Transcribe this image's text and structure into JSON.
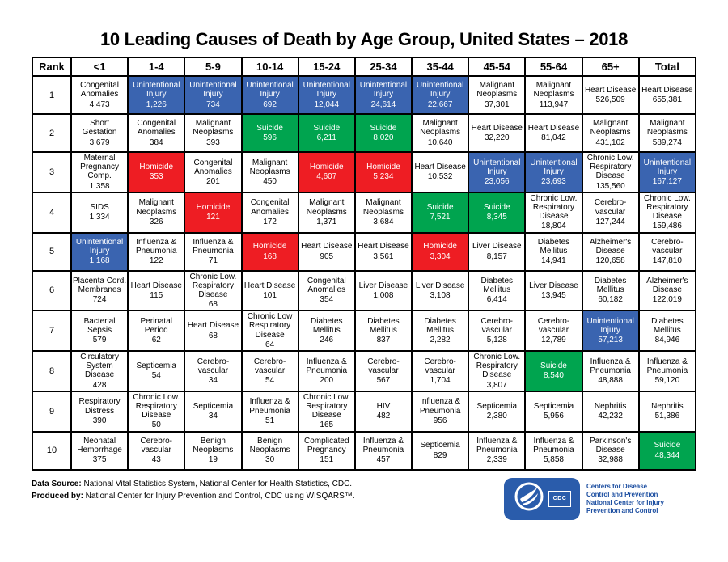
{
  "page": {
    "title": "10 Leading Causes of Death by Age Group, United States – 2018"
  },
  "colors": {
    "blue": "#3A64B0",
    "green": "#00A44F",
    "red": "#EE1D23",
    "logo_badge_blue": "#2A5CAB",
    "logo_text_blue": "#1D4FA1",
    "border_black": "#000000"
  },
  "chart_data": {
    "type": "table",
    "title": "10 Leading Causes of Death by Age Group, United States – 2018",
    "columns": [
      "Rank",
      "<1",
      "1-4",
      "5-9",
      "10-14",
      "15-24",
      "25-34",
      "35-44",
      "45-54",
      "55-64",
      "65+",
      "Total"
    ],
    "color_meaning": {
      "blue": "Unintentional Injury",
      "green": "Suicide",
      "red": "Homicide",
      "white": "other causes"
    },
    "rows": [
      {
        "rank": "1",
        "cells": [
          {
            "cause": "Congenital Anomalies",
            "value": "4,473",
            "color": "white"
          },
          {
            "cause": "Unintentional Injury",
            "value": "1,226",
            "color": "blue"
          },
          {
            "cause": "Unintentional Injury",
            "value": "734",
            "color": "blue"
          },
          {
            "cause": "Unintentional Injury",
            "value": "692",
            "color": "blue"
          },
          {
            "cause": "Unintentional Injury",
            "value": "12,044",
            "color": "blue"
          },
          {
            "cause": "Unintentional Injury",
            "value": "24,614",
            "color": "blue"
          },
          {
            "cause": "Unintentional Injury",
            "value": "22,667",
            "color": "blue"
          },
          {
            "cause": "Malignant Neoplasms",
            "value": "37,301",
            "color": "white"
          },
          {
            "cause": "Malignant Neoplasms",
            "value": "113,947",
            "color": "white"
          },
          {
            "cause": "Heart Disease",
            "value": "526,509",
            "color": "white"
          },
          {
            "cause": "Heart Disease",
            "value": "655,381",
            "color": "white"
          }
        ]
      },
      {
        "rank": "2",
        "cells": [
          {
            "cause": "Short Gestation",
            "value": "3,679",
            "color": "white"
          },
          {
            "cause": "Congenital Anomalies",
            "value": "384",
            "color": "white"
          },
          {
            "cause": "Malignant Neoplasms",
            "value": "393",
            "color": "white"
          },
          {
            "cause": "Suicide",
            "value": "596",
            "color": "green"
          },
          {
            "cause": "Suicide",
            "value": "6,211",
            "color": "green"
          },
          {
            "cause": "Suicide",
            "value": "8,020",
            "color": "green"
          },
          {
            "cause": "Malignant Neoplasms",
            "value": "10,640",
            "color": "white"
          },
          {
            "cause": "Heart Disease",
            "value": "32,220",
            "color": "white"
          },
          {
            "cause": "Heart Disease",
            "value": "81,042",
            "color": "white"
          },
          {
            "cause": "Malignant Neoplasms",
            "value": "431,102",
            "color": "white"
          },
          {
            "cause": "Malignant Neoplasms",
            "value": "589,274",
            "color": "white"
          }
        ]
      },
      {
        "rank": "3",
        "cells": [
          {
            "cause": "Maternal Pregnancy Comp.",
            "value": "1,358",
            "color": "white"
          },
          {
            "cause": "Homicide",
            "value": "353",
            "color": "red"
          },
          {
            "cause": "Congenital Anomalies",
            "value": "201",
            "color": "white"
          },
          {
            "cause": "Malignant Neoplasms",
            "value": "450",
            "color": "white"
          },
          {
            "cause": "Homicide",
            "value": "4,607",
            "color": "red"
          },
          {
            "cause": "Homicide",
            "value": "5,234",
            "color": "red"
          },
          {
            "cause": "Heart Disease",
            "value": "10,532",
            "color": "white"
          },
          {
            "cause": "Unintentional Injury",
            "value": "23,056",
            "color": "blue"
          },
          {
            "cause": "Unintentional Injury",
            "value": "23,693",
            "color": "blue"
          },
          {
            "cause": "Chronic Low. Respiratory Disease",
            "value": "135,560",
            "color": "white"
          },
          {
            "cause": "Unintentional Injury",
            "value": "167,127",
            "color": "blue"
          }
        ]
      },
      {
        "rank": "4",
        "cells": [
          {
            "cause": "SIDS",
            "value": "1,334",
            "color": "white"
          },
          {
            "cause": "Malignant Neoplasms",
            "value": "326",
            "color": "white"
          },
          {
            "cause": "Homicide",
            "value": "121",
            "color": "red"
          },
          {
            "cause": "Congenital Anomalies",
            "value": "172",
            "color": "white"
          },
          {
            "cause": "Malignant Neoplasms",
            "value": "1,371",
            "color": "white"
          },
          {
            "cause": "Malignant Neoplasms",
            "value": "3,684",
            "color": "white"
          },
          {
            "cause": "Suicide",
            "value": "7,521",
            "color": "green"
          },
          {
            "cause": "Suicide",
            "value": "8,345",
            "color": "green"
          },
          {
            "cause": "Chronic Low. Respiratory Disease",
            "value": "18,804",
            "color": "white"
          },
          {
            "cause": "Cerebro- vascular",
            "value": "127,244",
            "color": "white"
          },
          {
            "cause": "Chronic Low. Respiratory Disease",
            "value": "159,486",
            "color": "white"
          }
        ]
      },
      {
        "rank": "5",
        "cells": [
          {
            "cause": "Unintentional Injury",
            "value": "1,168",
            "color": "blue"
          },
          {
            "cause": "Influenza & Pneumonia",
            "value": "122",
            "color": "white"
          },
          {
            "cause": "Influenza & Pneumonia",
            "value": "71",
            "color": "white"
          },
          {
            "cause": "Homicide",
            "value": "168",
            "color": "red"
          },
          {
            "cause": "Heart Disease",
            "value": "905",
            "color": "white"
          },
          {
            "cause": "Heart Disease",
            "value": "3,561",
            "color": "white"
          },
          {
            "cause": "Homicide",
            "value": "3,304",
            "color": "red"
          },
          {
            "cause": "Liver Disease",
            "value": "8,157",
            "color": "white"
          },
          {
            "cause": "Diabetes Mellitus",
            "value": "14,941",
            "color": "white"
          },
          {
            "cause": "Alzheimer's Disease",
            "value": "120,658",
            "color": "white"
          },
          {
            "cause": "Cerebro- vascular",
            "value": "147,810",
            "color": "white"
          }
        ]
      },
      {
        "rank": "6",
        "cells": [
          {
            "cause": "Placenta Cord. Membranes",
            "value": "724",
            "color": "white"
          },
          {
            "cause": "Heart Disease",
            "value": "115",
            "color": "white"
          },
          {
            "cause": "Chronic Low. Respiratory Disease",
            "value": "68",
            "color": "white"
          },
          {
            "cause": "Heart Disease",
            "value": "101",
            "color": "white"
          },
          {
            "cause": "Congenital Anomalies",
            "value": "354",
            "color": "white"
          },
          {
            "cause": "Liver Disease",
            "value": "1,008",
            "color": "white"
          },
          {
            "cause": "Liver Disease",
            "value": "3,108",
            "color": "white"
          },
          {
            "cause": "Diabetes Mellitus",
            "value": "6,414",
            "color": "white"
          },
          {
            "cause": "Liver Disease",
            "value": "13,945",
            "color": "white"
          },
          {
            "cause": "Diabetes Mellitus",
            "value": "60,182",
            "color": "white"
          },
          {
            "cause": "Alzheimer's Disease",
            "value": "122,019",
            "color": "white"
          }
        ]
      },
      {
        "rank": "7",
        "cells": [
          {
            "cause": "Bacterial Sepsis",
            "value": "579",
            "color": "white"
          },
          {
            "cause": "Perinatal Period",
            "value": "62",
            "color": "white"
          },
          {
            "cause": "Heart Disease",
            "value": "68",
            "color": "white"
          },
          {
            "cause": "Chronic Low Respiratory Disease",
            "value": "64",
            "color": "white"
          },
          {
            "cause": "Diabetes Mellitus",
            "value": "246",
            "color": "white"
          },
          {
            "cause": "Diabetes Mellitus",
            "value": "837",
            "color": "white"
          },
          {
            "cause": "Diabetes Mellitus",
            "value": "2,282",
            "color": "white"
          },
          {
            "cause": "Cerebro- vascular",
            "value": "5,128",
            "color": "white"
          },
          {
            "cause": "Cerebro- vascular",
            "value": "12,789",
            "color": "white"
          },
          {
            "cause": "Unintentional Injury",
            "value": "57,213",
            "color": "blue"
          },
          {
            "cause": "Diabetes Mellitus",
            "value": "84,946",
            "color": "white"
          }
        ]
      },
      {
        "rank": "8",
        "cells": [
          {
            "cause": "Circulatory System Disease",
            "value": "428",
            "color": "white"
          },
          {
            "cause": "Septicemia",
            "value": "54",
            "color": "white"
          },
          {
            "cause": "Cerebro- vascular",
            "value": "34",
            "color": "white"
          },
          {
            "cause": "Cerebro- vascular",
            "value": "54",
            "color": "white"
          },
          {
            "cause": "Influenza & Pneumonia",
            "value": "200",
            "color": "white"
          },
          {
            "cause": "Cerebro- vascular",
            "value": "567",
            "color": "white"
          },
          {
            "cause": "Cerebro- vascular",
            "value": "1,704",
            "color": "white"
          },
          {
            "cause": "Chronic Low. Respiratory Disease",
            "value": "3,807",
            "color": "white"
          },
          {
            "cause": "Suicide",
            "value": "8,540",
            "color": "green"
          },
          {
            "cause": "Influenza & Pneumonia",
            "value": "48,888",
            "color": "white"
          },
          {
            "cause": "Influenza & Pneumonia",
            "value": "59,120",
            "color": "white"
          }
        ]
      },
      {
        "rank": "9",
        "cells": [
          {
            "cause": "Respiratory Distress",
            "value": "390",
            "color": "white"
          },
          {
            "cause": "Chronic Low. Respiratory Disease",
            "value": "50",
            "color": "white"
          },
          {
            "cause": "Septicemia",
            "value": "34",
            "color": "white"
          },
          {
            "cause": "Influenza & Pneumonia",
            "value": "51",
            "color": "white"
          },
          {
            "cause": "Chronic Low. Respiratory Disease",
            "value": "165",
            "color": "white"
          },
          {
            "cause": "HIV",
            "value": "482",
            "color": "white"
          },
          {
            "cause": "Influenza & Pneumonia",
            "value": "956",
            "color": "white"
          },
          {
            "cause": "Septicemia",
            "value": "2,380",
            "color": "white"
          },
          {
            "cause": "Septicemia",
            "value": "5,956",
            "color": "white"
          },
          {
            "cause": "Nephritis",
            "value": "42,232",
            "color": "white"
          },
          {
            "cause": "Nephritis",
            "value": "51,386",
            "color": "white"
          }
        ]
      },
      {
        "rank": "10",
        "cells": [
          {
            "cause": "Neonatal Hemorrhage",
            "value": "375",
            "color": "white"
          },
          {
            "cause": "Cerebro- vascular",
            "value": "43",
            "color": "white"
          },
          {
            "cause": "Benign Neoplasms",
            "value": "19",
            "color": "white"
          },
          {
            "cause": "Benign Neoplasms",
            "value": "30",
            "color": "white"
          },
          {
            "cause": "Complicated Pregnancy",
            "value": "151",
            "color": "white"
          },
          {
            "cause": "Influenza & Pneumonia",
            "value": "457",
            "color": "white"
          },
          {
            "cause": "Septicemia",
            "value": "829",
            "color": "white"
          },
          {
            "cause": "Influenza & Pneumonia",
            "value": "2,339",
            "color": "white"
          },
          {
            "cause": "Influenza & Pneumonia",
            "value": "5,858",
            "color": "white"
          },
          {
            "cause": "Parkinson's Disease",
            "value": "32,988",
            "color": "white"
          },
          {
            "cause": "Suicide",
            "value": "48,344",
            "color": "green"
          }
        ]
      }
    ]
  },
  "footer": {
    "data_source_label": "Data Source:",
    "data_source_text": " National Vital Statistics System, National Center for Health Statistics, CDC.",
    "produced_by_label": "Produced by:",
    "produced_by_text": " National Center for Injury Prevention and Control, CDC using WISQARS™."
  },
  "logo": {
    "cdc_abbrev": "CDC",
    "lines": [
      "Centers for Disease",
      "Control and Prevention",
      "National Center for Injury",
      "Prevention and Control"
    ]
  }
}
